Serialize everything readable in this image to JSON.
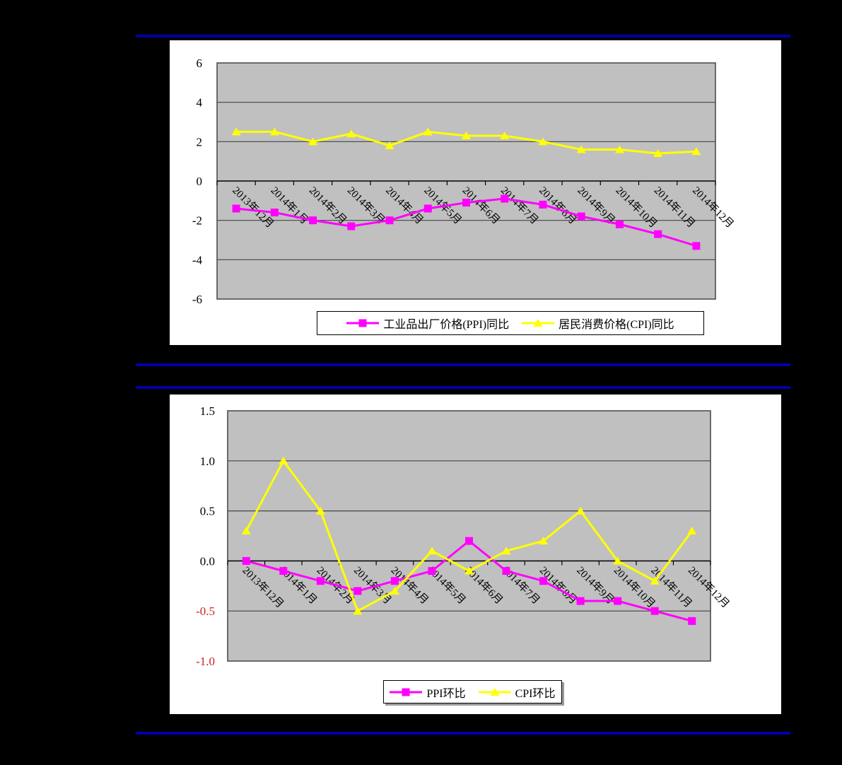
{
  "page": {
    "background_color": "#000000",
    "divider_color": "#0000A8",
    "panel_color": "#FFFFFF"
  },
  "chart_data": [
    {
      "type": "line",
      "title": "",
      "xlabel": "",
      "ylabel": "",
      "grid": true,
      "plot_bg": "#C0C0C0",
      "legend_position": "bottom",
      "categories": [
        "2013年12月",
        "2014年1月",
        "2014年2月",
        "2014年3月",
        "2014年4月",
        "2014年5月",
        "2014年6月",
        "2014年7月",
        "2014年8月",
        "2014年9月",
        "2014年10月",
        "2014年11月",
        "2014年12月"
      ],
      "series": [
        {
          "name": "工业品出厂价格(PPI)同比",
          "marker": "square",
          "color": "#FF00FF",
          "values": [
            -1.4,
            -1.6,
            -2.0,
            -2.3,
            -2.0,
            -1.4,
            -1.1,
            -0.9,
            -1.2,
            -1.8,
            -2.2,
            -2.7,
            -3.3
          ]
        },
        {
          "name": "居民消费价格(CPI)同比",
          "marker": "triangle",
          "color": "#FFFF00",
          "values": [
            2.5,
            2.5,
            2.0,
            2.4,
            1.8,
            2.5,
            2.3,
            2.3,
            2.0,
            1.6,
            1.6,
            1.4,
            1.5
          ]
        }
      ],
      "ylim": [
        -6,
        6
      ],
      "ytick_labels": [
        "6",
        "4",
        "2",
        "0",
        "-2",
        "-4",
        "-6"
      ],
      "ytick_values": [
        6,
        4,
        2,
        0,
        -2,
        -4,
        -6
      ],
      "negative_tick_color": "#000000"
    },
    {
      "type": "line",
      "title": "",
      "xlabel": "",
      "ylabel": "",
      "grid": true,
      "plot_bg": "#C0C0C0",
      "legend_position": "bottom",
      "categories": [
        "2013年12月",
        "2014年1月",
        "2014年2月",
        "2014年3月",
        "2014年4月",
        "2014年5月",
        "2014年6月",
        "2014年7月",
        "2014年8月",
        "2014年9月",
        "2014年10月",
        "2014年11月",
        "2014年12月"
      ],
      "series": [
        {
          "name": "PPI环比",
          "marker": "square",
          "color": "#FF00FF",
          "values": [
            0.0,
            -0.1,
            -0.2,
            -0.3,
            -0.2,
            -0.1,
            0.2,
            -0.1,
            -0.2,
            -0.4,
            -0.4,
            -0.5,
            -0.6
          ]
        },
        {
          "name": "CPI环比",
          "marker": "triangle",
          "color": "#FFFF00",
          "values": [
            0.3,
            1.0,
            0.5,
            -0.5,
            -0.3,
            0.1,
            -0.1,
            0.1,
            0.2,
            0.5,
            0.0,
            -0.2,
            0.3
          ]
        }
      ],
      "ylim": [
        -1.0,
        1.5
      ],
      "ytick_labels": [
        "1.5",
        "1.0",
        "0.5",
        "0.0",
        "-0.5",
        "-1.0"
      ],
      "ytick_values": [
        1.5,
        1.0,
        0.5,
        0.0,
        -0.5,
        -1.0
      ],
      "negative_tick_color": "#CC2222"
    }
  ]
}
